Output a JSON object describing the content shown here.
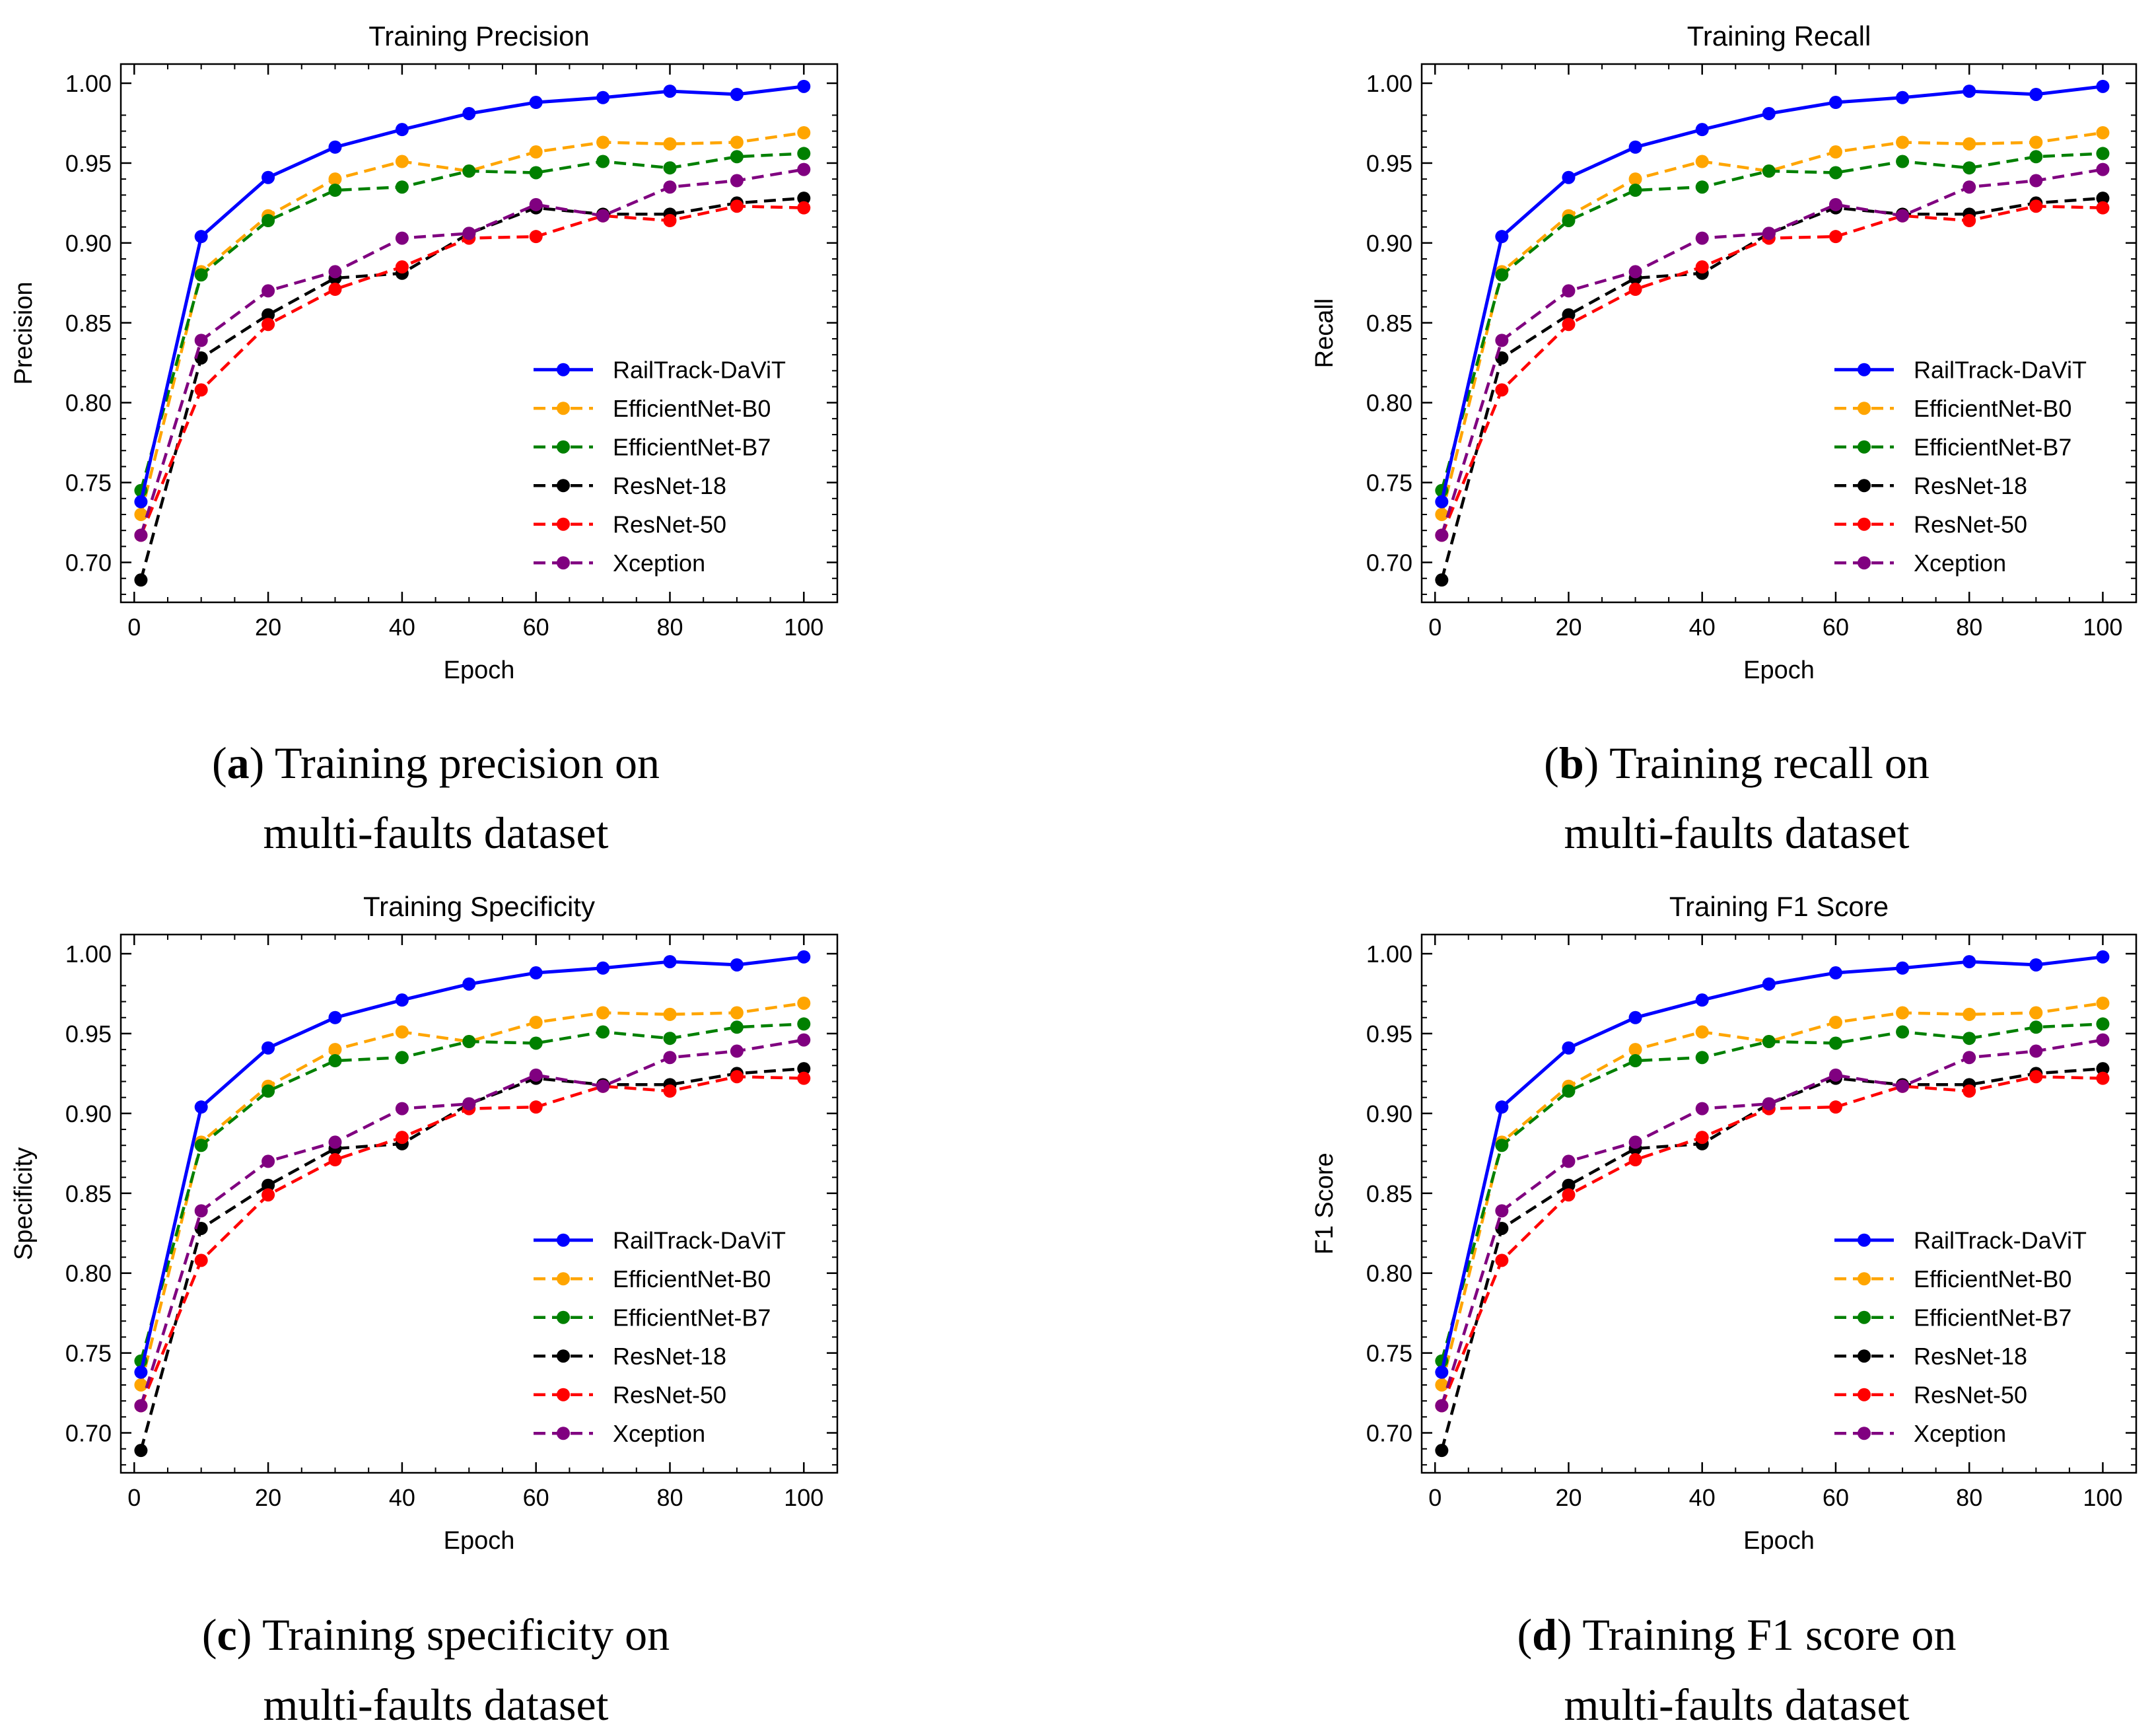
{
  "figure_captions": [
    {
      "letter": "a",
      "line1_rest": " Training precision on",
      "line2": "multi-faults dataset"
    },
    {
      "letter": "b",
      "line1_rest": " Training recall on",
      "line2": "multi-faults dataset"
    },
    {
      "letter": "c",
      "line1_rest": " Training specificity on",
      "line2": "multi-faults dataset"
    },
    {
      "letter": "d",
      "line1_rest": " Training F1 score on",
      "line2": "multi-faults dataset"
    }
  ],
  "series_styles": [
    {
      "name": "RailTrack-DaViT",
      "color": "#0000ff",
      "dash": "solid"
    },
    {
      "name": "EfficientNet-B0",
      "color": "#ffa500",
      "dash": "dashed"
    },
    {
      "name": "EfficientNet-B7",
      "color": "#008000",
      "dash": "dashed"
    },
    {
      "name": "ResNet-18",
      "color": "#000000",
      "dash": "dashed"
    },
    {
      "name": "ResNet-50",
      "color": "#ff0000",
      "dash": "dashed"
    },
    {
      "name": "Xception",
      "color": "#800080",
      "dash": "dashed"
    }
  ],
  "chart_data": [
    {
      "type": "line",
      "title": "Training Precision",
      "xlabel": "Epoch",
      "ylabel": "Precision",
      "xlim": [
        -2,
        105
      ],
      "ylim": [
        0.675,
        1.012
      ],
      "xticks": [
        0,
        20,
        40,
        60,
        80,
        100
      ],
      "yticks": [
        0.7,
        0.75,
        0.8,
        0.85,
        0.9,
        0.95,
        1.0
      ],
      "ytick_labels": [
        "0.70",
        "0.75",
        "0.80",
        "0.85",
        "0.90",
        "0.95",
        "1.00"
      ],
      "legend": "center-right",
      "x": [
        1,
        10,
        20,
        30,
        40,
        50,
        60,
        70,
        80,
        90,
        100
      ],
      "series": [
        {
          "name": "RailTrack-DaViT",
          "values": [
            0.738,
            0.904,
            0.941,
            0.96,
            0.971,
            0.981,
            0.988,
            0.991,
            0.995,
            0.993,
            0.998
          ]
        },
        {
          "name": "EfficientNet-B0",
          "values": [
            0.73,
            0.882,
            0.917,
            0.94,
            0.951,
            0.945,
            0.957,
            0.963,
            0.962,
            0.963,
            0.969
          ]
        },
        {
          "name": "EfficientNet-B7",
          "values": [
            0.745,
            0.88,
            0.914,
            0.933,
            0.935,
            0.945,
            0.944,
            0.951,
            0.947,
            0.954,
            0.956
          ]
        },
        {
          "name": "ResNet-18",
          "values": [
            0.689,
            0.828,
            0.855,
            0.878,
            0.881,
            0.906,
            0.922,
            0.918,
            0.918,
            0.925,
            0.928
          ]
        },
        {
          "name": "ResNet-50",
          "values": [
            0.717,
            0.808,
            0.849,
            0.871,
            0.885,
            0.903,
            0.904,
            0.917,
            0.914,
            0.923,
            0.922
          ]
        },
        {
          "name": "Xception",
          "values": [
            0.717,
            0.839,
            0.87,
            0.882,
            0.903,
            0.906,
            0.924,
            0.917,
            0.935,
            0.939,
            0.946
          ]
        }
      ]
    },
    {
      "type": "line",
      "title": "Training Recall",
      "xlabel": "Epoch",
      "ylabel": "Recall",
      "xlim": [
        -2,
        105
      ],
      "ylim": [
        0.675,
        1.012
      ],
      "xticks": [
        0,
        20,
        40,
        60,
        80,
        100
      ],
      "yticks": [
        0.7,
        0.75,
        0.8,
        0.85,
        0.9,
        0.95,
        1.0
      ],
      "ytick_labels": [
        "0.70",
        "0.75",
        "0.80",
        "0.85",
        "0.90",
        "0.95",
        "1.00"
      ],
      "legend": "center-right",
      "x": [
        1,
        10,
        20,
        30,
        40,
        50,
        60,
        70,
        80,
        90,
        100
      ],
      "series": [
        {
          "name": "RailTrack-DaViT",
          "values": [
            0.738,
            0.904,
            0.941,
            0.96,
            0.971,
            0.981,
            0.988,
            0.991,
            0.995,
            0.993,
            0.998
          ]
        },
        {
          "name": "EfficientNet-B0",
          "values": [
            0.73,
            0.882,
            0.917,
            0.94,
            0.951,
            0.945,
            0.957,
            0.963,
            0.962,
            0.963,
            0.969
          ]
        },
        {
          "name": "EfficientNet-B7",
          "values": [
            0.745,
            0.88,
            0.914,
            0.933,
            0.935,
            0.945,
            0.944,
            0.951,
            0.947,
            0.954,
            0.956
          ]
        },
        {
          "name": "ResNet-18",
          "values": [
            0.689,
            0.828,
            0.855,
            0.878,
            0.881,
            0.906,
            0.922,
            0.918,
            0.918,
            0.925,
            0.928
          ]
        },
        {
          "name": "ResNet-50",
          "values": [
            0.717,
            0.808,
            0.849,
            0.871,
            0.885,
            0.903,
            0.904,
            0.917,
            0.914,
            0.923,
            0.922
          ]
        },
        {
          "name": "Xception",
          "values": [
            0.717,
            0.839,
            0.87,
            0.882,
            0.903,
            0.906,
            0.924,
            0.917,
            0.935,
            0.939,
            0.946
          ]
        }
      ]
    },
    {
      "type": "line",
      "title": "Training Specificity",
      "xlabel": "Epoch",
      "ylabel": "Specificity",
      "xlim": [
        -2,
        105
      ],
      "ylim": [
        0.675,
        1.012
      ],
      "xticks": [
        0,
        20,
        40,
        60,
        80,
        100
      ],
      "yticks": [
        0.7,
        0.75,
        0.8,
        0.85,
        0.9,
        0.95,
        1.0
      ],
      "ytick_labels": [
        "0.70",
        "0.75",
        "0.80",
        "0.85",
        "0.90",
        "0.95",
        "1.00"
      ],
      "legend": "center-right",
      "x": [
        1,
        10,
        20,
        30,
        40,
        50,
        60,
        70,
        80,
        90,
        100
      ],
      "series": [
        {
          "name": "RailTrack-DaViT",
          "values": [
            0.738,
            0.904,
            0.941,
            0.96,
            0.971,
            0.981,
            0.988,
            0.991,
            0.995,
            0.993,
            0.998
          ]
        },
        {
          "name": "EfficientNet-B0",
          "values": [
            0.73,
            0.882,
            0.917,
            0.94,
            0.951,
            0.945,
            0.957,
            0.963,
            0.962,
            0.963,
            0.969
          ]
        },
        {
          "name": "EfficientNet-B7",
          "values": [
            0.745,
            0.88,
            0.914,
            0.933,
            0.935,
            0.945,
            0.944,
            0.951,
            0.947,
            0.954,
            0.956
          ]
        },
        {
          "name": "ResNet-18",
          "values": [
            0.689,
            0.828,
            0.855,
            0.878,
            0.881,
            0.906,
            0.922,
            0.918,
            0.918,
            0.925,
            0.928
          ]
        },
        {
          "name": "ResNet-50",
          "values": [
            0.717,
            0.808,
            0.849,
            0.871,
            0.885,
            0.903,
            0.904,
            0.917,
            0.914,
            0.923,
            0.922
          ]
        },
        {
          "name": "Xception",
          "values": [
            0.717,
            0.839,
            0.87,
            0.882,
            0.903,
            0.906,
            0.924,
            0.917,
            0.935,
            0.939,
            0.946
          ]
        }
      ]
    },
    {
      "type": "line",
      "title": "Training F1 Score",
      "xlabel": "Epoch",
      "ylabel": "F1 Score",
      "xlim": [
        -2,
        105
      ],
      "ylim": [
        0.675,
        1.012
      ],
      "xticks": [
        0,
        20,
        40,
        60,
        80,
        100
      ],
      "yticks": [
        0.7,
        0.75,
        0.8,
        0.85,
        0.9,
        0.95,
        1.0
      ],
      "ytick_labels": [
        "0.70",
        "0.75",
        "0.80",
        "0.85",
        "0.90",
        "0.95",
        "1.00"
      ],
      "legend": "center-right",
      "x": [
        1,
        10,
        20,
        30,
        40,
        50,
        60,
        70,
        80,
        90,
        100
      ],
      "series": [
        {
          "name": "RailTrack-DaViT",
          "values": [
            0.738,
            0.904,
            0.941,
            0.96,
            0.971,
            0.981,
            0.988,
            0.991,
            0.995,
            0.993,
            0.998
          ]
        },
        {
          "name": "EfficientNet-B0",
          "values": [
            0.73,
            0.882,
            0.917,
            0.94,
            0.951,
            0.945,
            0.957,
            0.963,
            0.962,
            0.963,
            0.969
          ]
        },
        {
          "name": "EfficientNet-B7",
          "values": [
            0.745,
            0.88,
            0.914,
            0.933,
            0.935,
            0.945,
            0.944,
            0.951,
            0.947,
            0.954,
            0.956
          ]
        },
        {
          "name": "ResNet-18",
          "values": [
            0.689,
            0.828,
            0.855,
            0.878,
            0.881,
            0.906,
            0.922,
            0.918,
            0.918,
            0.925,
            0.928
          ]
        },
        {
          "name": "ResNet-50",
          "values": [
            0.717,
            0.808,
            0.849,
            0.871,
            0.885,
            0.903,
            0.904,
            0.917,
            0.914,
            0.923,
            0.922
          ]
        },
        {
          "name": "Xception",
          "values": [
            0.717,
            0.839,
            0.87,
            0.882,
            0.903,
            0.906,
            0.924,
            0.917,
            0.935,
            0.939,
            0.946
          ]
        }
      ]
    }
  ]
}
